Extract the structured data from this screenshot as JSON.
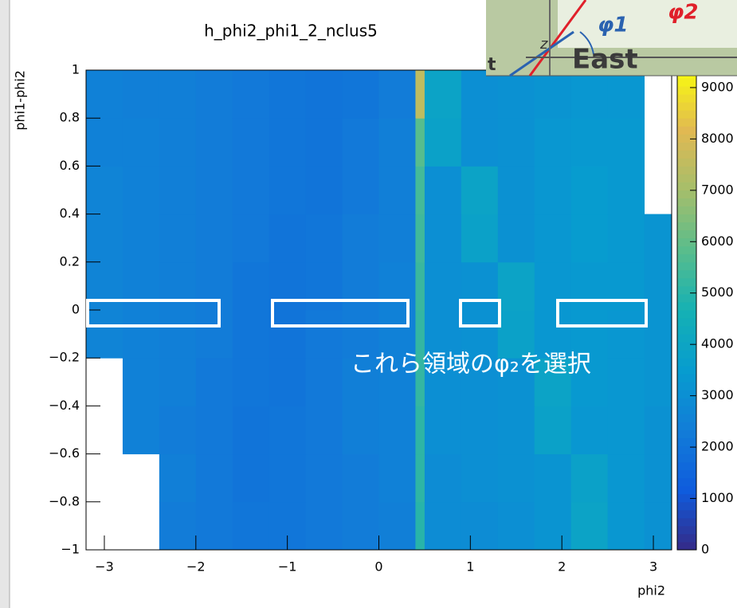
{
  "chart_data": {
    "type": "heatmap",
    "title": "h_phi2_phi1_2_nclus5",
    "x_label": "phi2",
    "y_label": "phi1-phi2",
    "xlim": [
      -3.2,
      3.2
    ],
    "ylim": [
      -1,
      1
    ],
    "zlim": [
      0,
      9340
    ],
    "xticks": [
      {
        "value": -3,
        "label": "−3"
      },
      {
        "value": -2,
        "label": "−2"
      },
      {
        "value": -1,
        "label": "−1"
      },
      0,
      1,
      2,
      3
    ],
    "yticks": [
      {
        "value": -1,
        "label": "−1"
      },
      {
        "value": -0.8,
        "label": "−0.8"
      },
      {
        "value": -0.6,
        "label": "−0.6"
      },
      {
        "value": -0.4,
        "label": "−0.4"
      },
      {
        "value": -0.2,
        "label": "−0.2"
      },
      0,
      0.2,
      0.4,
      0.6,
      0.8,
      1
    ],
    "zticks": [
      0,
      1000,
      2000,
      3000,
      4000,
      5000,
      6000,
      7000,
      8000,
      9000
    ],
    "palette": [
      "#352a87",
      "#0f5cdd",
      "#127dd8",
      "#079ccf",
      "#15b1b4",
      "#59bd8c",
      "#a5be6b",
      "#e1b952",
      "#f9fb0e"
    ],
    "x_bins": [
      -3.2,
      -2.8,
      -2.4,
      -2.0,
      -1.6,
      -1.2,
      -0.8,
      -0.4,
      0.0,
      0.4,
      0.5,
      0.9,
      1.3,
      1.7,
      2.1,
      2.5,
      2.9,
      3.2
    ],
    "y_bins": [
      -1.0,
      -0.8,
      -0.6,
      -0.4,
      -0.2,
      0.0,
      0.2,
      0.4,
      0.6,
      0.8,
      1.0
    ],
    "z": [
      [
        null,
        null,
        2300,
        2200,
        2100,
        2100,
        2200,
        2300,
        2400,
        5000,
        2900,
        2900,
        3000,
        3200,
        3900,
        3300,
        3100
      ],
      [
        null,
        null,
        2400,
        2200,
        2000,
        2100,
        2200,
        2300,
        2500,
        5100,
        2900,
        3000,
        3100,
        3200,
        3800,
        3300,
        3100
      ],
      [
        null,
        2500,
        2300,
        2200,
        2000,
        2100,
        2200,
        2400,
        2500,
        5100,
        3000,
        3000,
        3100,
        3800,
        3300,
        3300,
        3100
      ],
      [
        null,
        2500,
        2400,
        2200,
        2100,
        2000,
        2200,
        2400,
        2500,
        5200,
        3000,
        3000,
        3100,
        3900,
        3400,
        3300,
        3200
      ],
      [
        2600,
        2500,
        2400,
        2300,
        2100,
        2000,
        2200,
        2300,
        2500,
        5200,
        3000,
        3100,
        3800,
        3300,
        3400,
        3300,
        3200
      ],
      [
        2600,
        2500,
        2400,
        2300,
        2100,
        2000,
        2100,
        2300,
        2500,
        5300,
        3000,
        3100,
        3900,
        3300,
        3400,
        3400,
        3200
      ],
      [
        2600,
        2500,
        2400,
        2300,
        2200,
        2000,
        2100,
        2300,
        2400,
        5400,
        3000,
        3800,
        3100,
        3300,
        3500,
        3400,
        3200
      ],
      [
        2600,
        2500,
        2400,
        2300,
        2200,
        2100,
        2000,
        2200,
        2400,
        5500,
        3000,
        3900,
        3100,
        3300,
        3500,
        3400,
        null
      ],
      [
        2500,
        2500,
        2400,
        2300,
        2200,
        2100,
        2000,
        2200,
        2400,
        5800,
        3800,
        3000,
        3100,
        3300,
        3400,
        3400,
        null
      ],
      [
        2500,
        2400,
        2400,
        2300,
        2200,
        2100,
        2000,
        2100,
        2300,
        7500,
        3900,
        3000,
        3100,
        3200,
        3300,
        3300,
        null
      ]
    ],
    "annotation": "これら領域のφ₂を選択",
    "inset_labels": [
      "East",
      "φ1",
      "φ2",
      "z",
      "t"
    ]
  }
}
